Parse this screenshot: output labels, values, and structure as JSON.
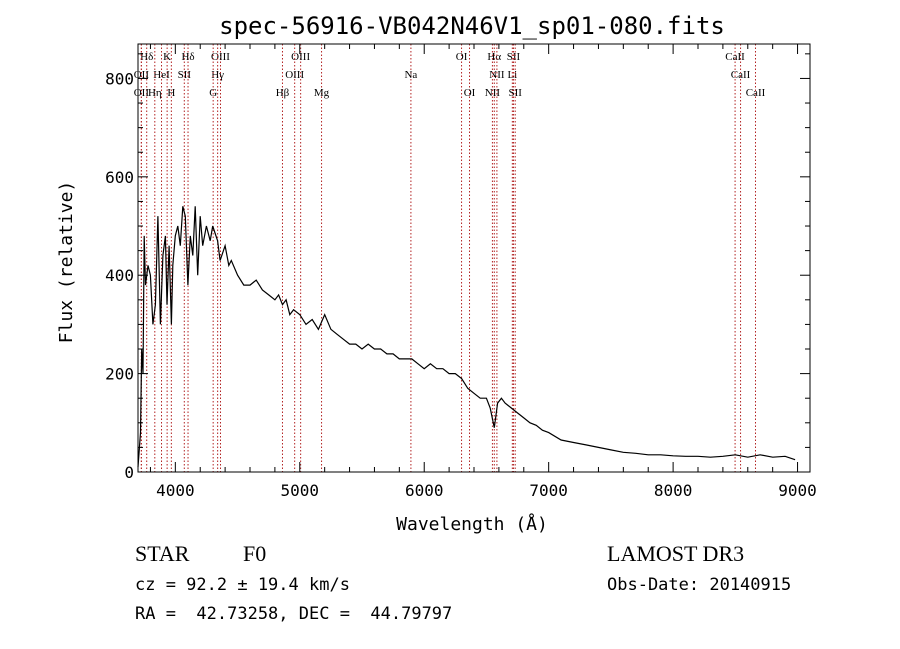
{
  "chart_data": {
    "type": "line",
    "title": "spec-56916-VB042N46V1_sp01-080.fits",
    "xlabel": "Wavelength (Å)",
    "ylabel": "Flux (relative)",
    "xlim": [
      3700,
      9100
    ],
    "ylim": [
      0,
      870
    ],
    "x_ticks": [
      4000,
      5000,
      6000,
      7000,
      8000,
      9000
    ],
    "y_ticks": [
      0,
      200,
      400,
      600,
      800
    ],
    "grid": false,
    "series": [
      {
        "name": "flux",
        "color": "#000000",
        "x": [
          3700,
          3720,
          3730,
          3740,
          3750,
          3760,
          3780,
          3800,
          3820,
          3840,
          3860,
          3880,
          3900,
          3920,
          3933,
          3950,
          3968,
          3980,
          4000,
          4020,
          4040,
          4060,
          4080,
          4101,
          4120,
          4140,
          4160,
          4180,
          4200,
          4220,
          4250,
          4280,
          4300,
          4340,
          4360,
          4400,
          4430,
          4450,
          4500,
          4550,
          4600,
          4650,
          4700,
          4750,
          4800,
          4830,
          4861,
          4890,
          4920,
          4950,
          5000,
          5050,
          5100,
          5150,
          5200,
          5250,
          5300,
          5350,
          5400,
          5450,
          5500,
          5550,
          5600,
          5650,
          5700,
          5750,
          5800,
          5850,
          5900,
          5950,
          6000,
          6050,
          6100,
          6150,
          6200,
          6250,
          6300,
          6350,
          6400,
          6450,
          6500,
          6530,
          6563,
          6590,
          6620,
          6650,
          6700,
          6750,
          6800,
          6850,
          6900,
          6950,
          7000,
          7100,
          7200,
          7300,
          7400,
          7500,
          7600,
          7700,
          7800,
          7900,
          8000,
          8100,
          8200,
          8300,
          8400,
          8500,
          8600,
          8700,
          8800,
          8900,
          8980
        ],
        "values": [
          10,
          80,
          250,
          200,
          480,
          380,
          420,
          400,
          300,
          340,
          520,
          300,
          440,
          480,
          340,
          460,
          300,
          420,
          480,
          500,
          460,
          540,
          520,
          380,
          480,
          440,
          540,
          400,
          520,
          460,
          500,
          470,
          500,
          470,
          430,
          460,
          420,
          430,
          400,
          380,
          380,
          390,
          370,
          360,
          350,
          360,
          340,
          350,
          320,
          330,
          320,
          300,
          310,
          290,
          320,
          290,
          280,
          270,
          260,
          260,
          250,
          260,
          250,
          250,
          240,
          240,
          230,
          230,
          230,
          220,
          210,
          220,
          210,
          210,
          200,
          200,
          190,
          170,
          160,
          150,
          150,
          130,
          90,
          140,
          150,
          140,
          130,
          120,
          110,
          100,
          95,
          85,
          80,
          65,
          60,
          55,
          50,
          45,
          40,
          38,
          35,
          35,
          33,
          32,
          32,
          30,
          32,
          35,
          30,
          35,
          30,
          32,
          25
        ]
      }
    ],
    "lines": [
      {
        "label": "Hδ",
        "x": 3770,
        "row": 0
      },
      {
        "label": "K",
        "x": 3934,
        "row": 0
      },
      {
        "label": "Hδ",
        "x": 4102,
        "row": 0
      },
      {
        "label": "OIII",
        "x": 4363,
        "row": 0
      },
      {
        "label": "OIII",
        "x": 5007,
        "row": 0
      },
      {
        "label": "OI",
        "x": 6300,
        "row": 0
      },
      {
        "label": "Hα",
        "x": 6563,
        "row": 0
      },
      {
        "label": "SII",
        "x": 6717,
        "row": 0
      },
      {
        "label": "CaII",
        "x": 8498,
        "row": 0
      },
      {
        "label": "OII",
        "x": 3727,
        "row": 1
      },
      {
        "label": "HeI",
        "x": 3889,
        "row": 1
      },
      {
        "label": "SII",
        "x": 4072,
        "row": 1
      },
      {
        "label": "Hγ",
        "x": 4340,
        "row": 1
      },
      {
        "label": "OIII",
        "x": 4959,
        "row": 1
      },
      {
        "label": "Na",
        "x": 5893,
        "row": 1
      },
      {
        "label": "NII",
        "x": 6584,
        "row": 1
      },
      {
        "label": "Li",
        "x": 6708,
        "row": 1
      },
      {
        "label": "CaII",
        "x": 8542,
        "row": 1
      },
      {
        "label": "OII",
        "x": 3727,
        "row": 2
      },
      {
        "label": "Hη",
        "x": 3835,
        "row": 2
      },
      {
        "label": "H",
        "x": 3968,
        "row": 2
      },
      {
        "label": "G",
        "x": 4304,
        "row": 2
      },
      {
        "label": "Hβ",
        "x": 4861,
        "row": 2
      },
      {
        "label": "Mg",
        "x": 5175,
        "row": 2
      },
      {
        "label": "OI",
        "x": 6364,
        "row": 2
      },
      {
        "label": "NII",
        "x": 6548,
        "row": 2
      },
      {
        "label": "SII",
        "x": 6731,
        "row": 2
      },
      {
        "label": "CaII",
        "x": 8662,
        "row": 2
      }
    ],
    "line_color": "#b22222"
  },
  "info": {
    "class": "STAR",
    "subclass": "F0",
    "survey": "LAMOST DR3",
    "cz": "cz = 92.2 ± 19.4 km/s",
    "obs_date": "Obs-Date: 20140915",
    "coords": "RA =  42.73258, DEC =  44.79797"
  }
}
